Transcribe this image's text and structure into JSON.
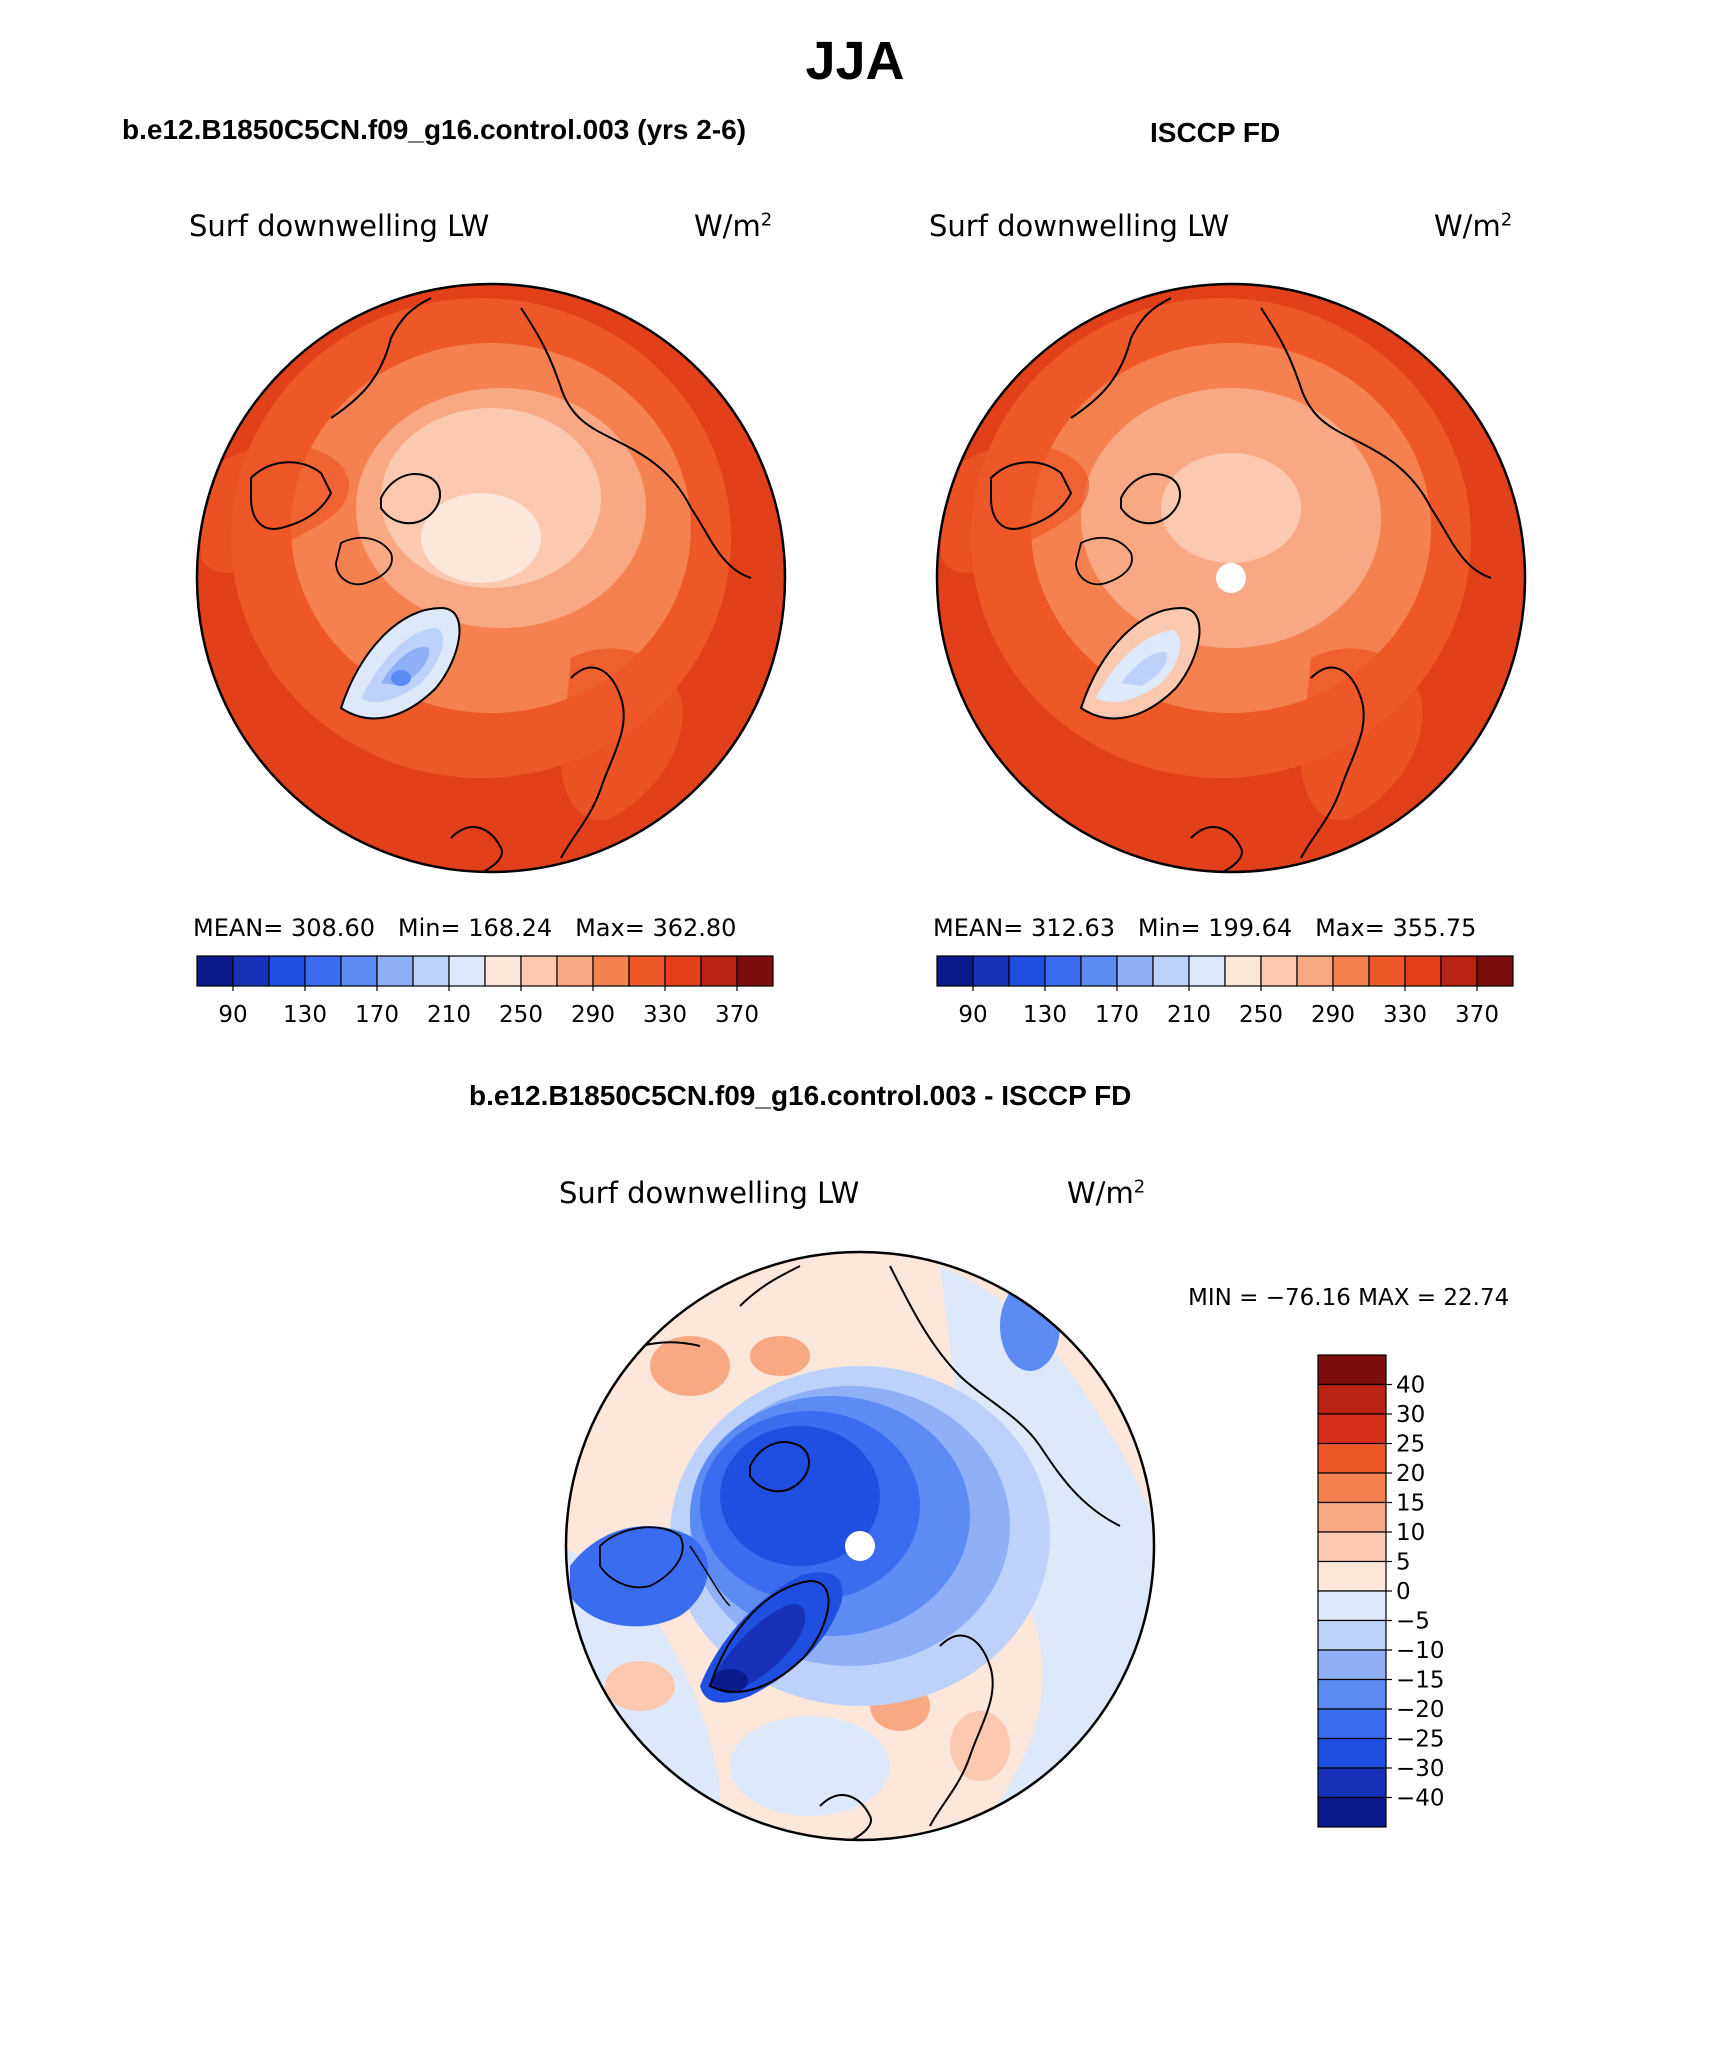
{
  "season": "JJA",
  "palette": {
    "absolute": [
      "#0b1b8e",
      "#1731b8",
      "#1f4fe0",
      "#3a6cf0",
      "#5d8bf4",
      "#8fb0f7",
      "#bdd2fb",
      "#dde9fb",
      "#fde6da",
      "#fbc9b0",
      "#f9a884",
      "#f4814f",
      "#ee5828",
      "#e2401a",
      "#b82312",
      "#7e0d0d"
    ],
    "difference": [
      "#0b1b8e",
      "#1731b8",
      "#1f4fe0",
      "#3a6cf0",
      "#5d8bf4",
      "#8fb0f7",
      "#bdd2fb",
      "#dde9fb",
      "#fde6da",
      "#fbc9b0",
      "#f9a884",
      "#f4814f",
      "#ee5828",
      "#d7301a",
      "#7e0d0d"
    ]
  },
  "panels": [
    {
      "title": "b.e12.B1850C5CN.f09_g16.control.003 (yrs 2-6)",
      "variable": "Surf downwelling LW",
      "units": "W/m",
      "units_exp": "2",
      "mean_label": "MEAN=",
      "mean": "308.60",
      "min_label": "Min=",
      "min": "168.24",
      "max_label": "Max=",
      "max": "362.80",
      "colorbar_ticks": [
        "90",
        "130",
        "170",
        "210",
        "250",
        "290",
        "330",
        "370"
      ]
    },
    {
      "title": "ISCCP FD",
      "variable": "Surf downwelling LW",
      "units": "W/m",
      "units_exp": "2",
      "mean_label": "MEAN=",
      "mean": "312.63",
      "min_label": "Min=",
      "min": "199.64",
      "max_label": "Max=",
      "max": "355.75",
      "colorbar_ticks": [
        "90",
        "130",
        "170",
        "210",
        "250",
        "290",
        "330",
        "370"
      ]
    }
  ],
  "difference": {
    "title": "b.e12.B1850C5CN.f09_g16.control.003 - ISCCP FD",
    "variable": "Surf downwelling LW",
    "units": "W/m",
    "units_exp": "2",
    "minmax": "MIN = −76.16 MAX =   22.74",
    "colorbar_ticks": [
      "40",
      "30",
      "25",
      "20",
      "15",
      "10",
      "5",
      "0",
      "−5",
      "−10",
      "−15",
      "−20",
      "−25",
      "−30",
      "−40"
    ]
  }
}
